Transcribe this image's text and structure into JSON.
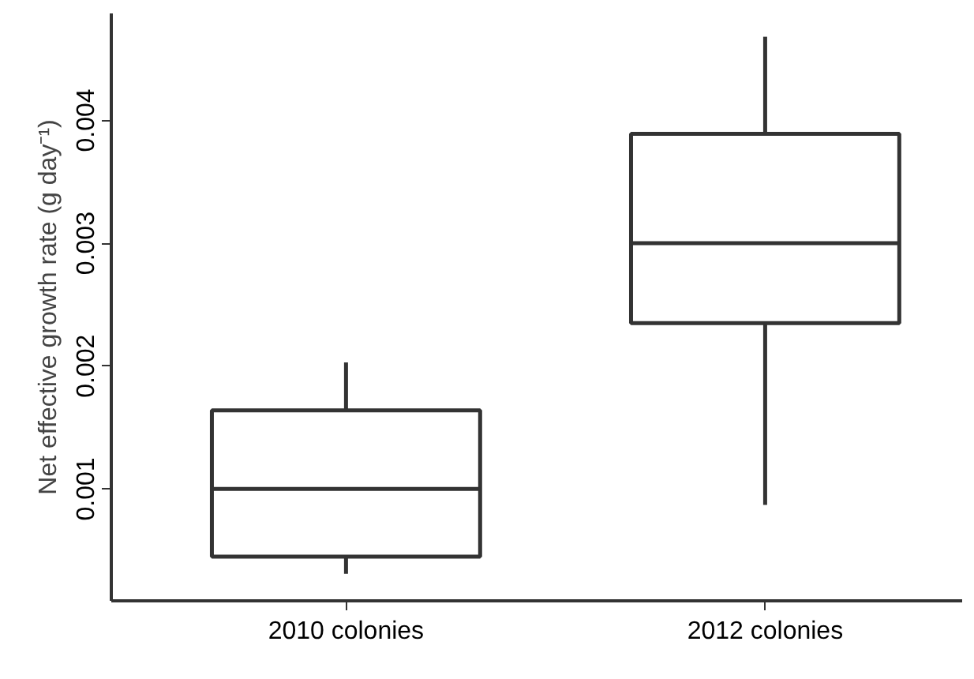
{
  "chart_data": {
    "type": "box",
    "ylabel": "Net effective growth rate (g day⁻¹)",
    "categories": [
      "2010 colonies",
      "2012 colonies"
    ],
    "boxes": [
      {
        "low": 0.00031,
        "q1": 0.00045,
        "median": 0.001,
        "q3": 0.00164,
        "high": 0.00203
      },
      {
        "low": 0.00087,
        "q1": 0.00235,
        "median": 0.003,
        "q3": 0.00389,
        "high": 0.00468
      }
    ],
    "ylim": [
      9e-05,
      0.00487
    ],
    "yticks": [
      0.001,
      0.002,
      0.003,
      0.004
    ],
    "grid": false
  }
}
